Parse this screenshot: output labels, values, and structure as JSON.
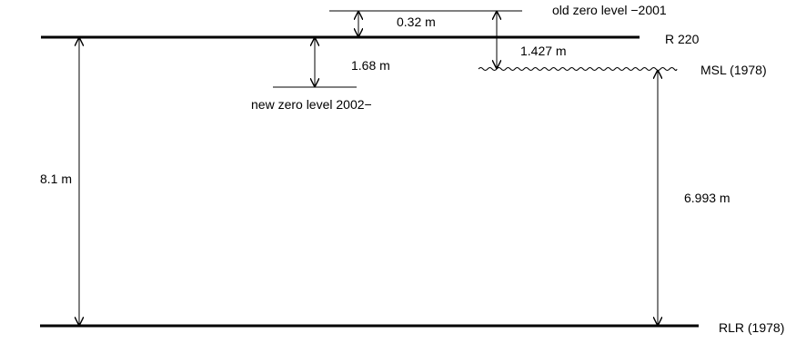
{
  "diagram": {
    "labels": {
      "old_zero": "old zero level −2001",
      "r220": "R 220",
      "msl": "MSL (1978)",
      "new_zero": "new zero level 2002−",
      "rlr": "RLR (1978)"
    },
    "measurements": {
      "old_zero_to_r220": "0.32 m",
      "old_zero_to_msl": "1.427 m",
      "r220_to_new_zero": "1.68 m",
      "r220_to_rlr": "8.1 m",
      "msl_to_rlr": "6.993 m"
    },
    "colors": {
      "stroke": "#000000",
      "background": "#ffffff"
    }
  }
}
